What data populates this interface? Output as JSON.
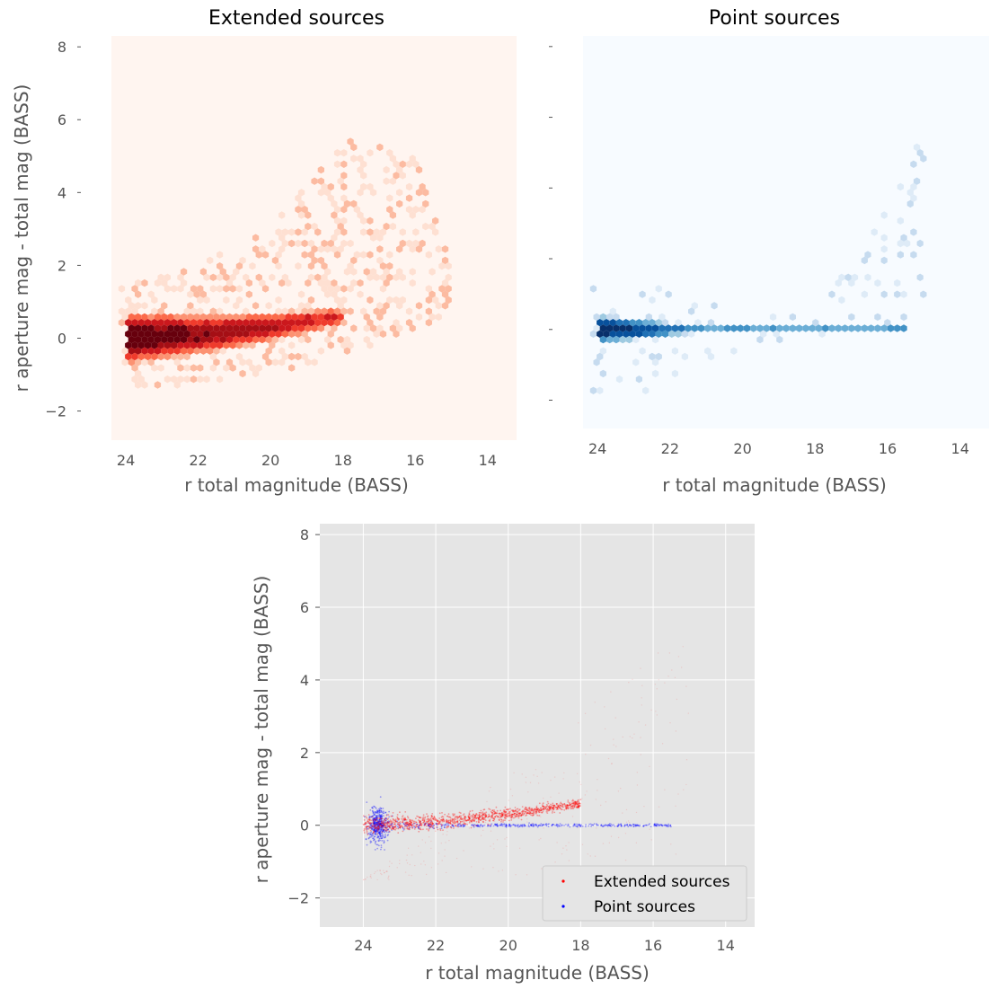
{
  "chart_data": [
    {
      "type": "heatmap",
      "title": "Extended sources",
      "xlabel": "r total magnitude (BASS)",
      "ylabel": "r aperture mag - total mag (BASS)",
      "xlim": [
        24.4,
        13.2
      ],
      "ylim": [
        -2.8,
        8.3
      ],
      "x_inverted": true,
      "xticks": [
        "24",
        "22",
        "20",
        "18",
        "16",
        "14"
      ],
      "yticks": [
        "8",
        "6",
        "4",
        "2",
        "0",
        "−2"
      ],
      "colormap": "Reds",
      "background_color": "#fff5f0",
      "density_ridge": [
        {
          "x": 24.0,
          "y": 0.0
        },
        {
          "x": 23.0,
          "y": 0.05
        },
        {
          "x": 22.0,
          "y": 0.1
        },
        {
          "x": 21.0,
          "y": 0.2
        },
        {
          "x": 20.0,
          "y": 0.3
        },
        {
          "x": 19.0,
          "y": 0.45
        },
        {
          "x": 18.0,
          "y": 0.6
        }
      ],
      "sparse_extent": [
        {
          "x": 24.0,
          "y_low": -1.5,
          "y_high": 1.5
        },
        {
          "x": 22.0,
          "y_low": -1.2,
          "y_high": 2.0
        },
        {
          "x": 20.0,
          "y_low": -1.0,
          "y_high": 3.0
        },
        {
          "x": 18.0,
          "y_low": -0.5,
          "y_high": 5.5
        },
        {
          "x": 16.0,
          "y_low": 0.3,
          "y_high": 5.0
        },
        {
          "x": 15.0,
          "y_low": 0.5,
          "y_high": 2.0
        }
      ]
    },
    {
      "type": "heatmap",
      "title": "Point sources",
      "xlabel": "r total magnitude (BASS)",
      "ylabel": "",
      "xlim": [
        24.4,
        13.2
      ],
      "ylim": [
        -2.8,
        8.3
      ],
      "x_inverted": true,
      "xticks": [
        "24",
        "22",
        "20",
        "18",
        "16",
        "14"
      ],
      "yticks": [],
      "colormap": "Blues",
      "background_color": "#f7fbff",
      "density_ridge": [
        {
          "x": 24.0,
          "y": 0.0
        },
        {
          "x": 22.0,
          "y": 0.0
        },
        {
          "x": 20.0,
          "y": 0.0
        },
        {
          "x": 18.0,
          "y": 0.0
        },
        {
          "x": 16.0,
          "y": 0.0
        },
        {
          "x": 15.5,
          "y": 0.05
        }
      ],
      "sparse_extent": [
        {
          "x": 24.0,
          "y_low": -2.3,
          "y_high": 1.2
        },
        {
          "x": 22.0,
          "y_low": -1.5,
          "y_high": 1.2
        },
        {
          "x": 20.0,
          "y_low": -0.5,
          "y_high": 0.5
        },
        {
          "x": 18.0,
          "y_low": -0.3,
          "y_high": 0.3
        },
        {
          "x": 15.0,
          "y_low": 0.0,
          "y_high": 6.0
        }
      ]
    },
    {
      "type": "scatter",
      "title": "",
      "xlabel": "r total magnitude (BASS)",
      "ylabel": "r aperture mag - total mag (BASS)",
      "xlim": [
        25.2,
        13.2
      ],
      "ylim": [
        -2.8,
        8.3
      ],
      "x_inverted": true,
      "xticks": [
        "24",
        "22",
        "20",
        "18",
        "16",
        "14"
      ],
      "yticks": [
        "8",
        "6",
        "4",
        "2",
        "0",
        "−2"
      ],
      "grid": true,
      "background_color": "#e5e5e5",
      "legend_position": "lower-right",
      "series": [
        {
          "name": "Extended sources",
          "color": "#ff0000"
        },
        {
          "name": "Point sources",
          "color": "#0000ff"
        }
      ]
    }
  ]
}
